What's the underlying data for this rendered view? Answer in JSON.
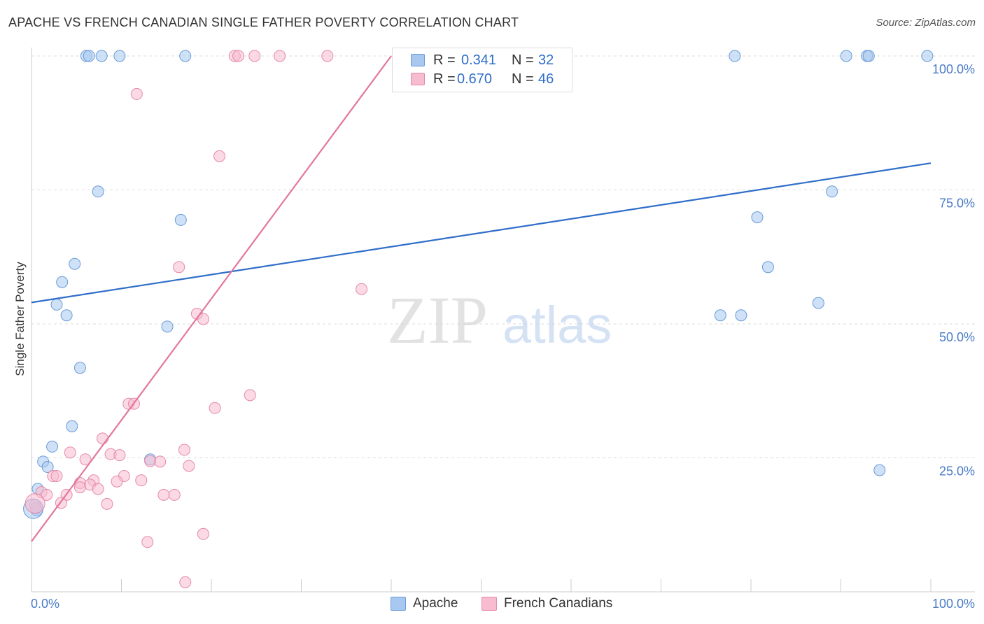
{
  "header": {
    "title": "APACHE VS FRENCH CANADIAN SINGLE FATHER POVERTY CORRELATION CHART",
    "source": "Source: ZipAtlas.com"
  },
  "watermark": {
    "zip": "ZIP",
    "atlas": "atlas"
  },
  "stats": [
    {
      "r_label": "R =",
      "r_value": "0.341",
      "n_label": "N =",
      "n_value": "32",
      "color": "#a8c8f0",
      "border": "#6a9bd8"
    },
    {
      "r_label": "R =",
      "r_value": "0.670",
      "n_label": "N =",
      "n_value": "46",
      "color": "#f7bcd0",
      "border": "#e58aa8"
    }
  ],
  "legend": [
    {
      "label": "Apache",
      "color": "#a8c8f0",
      "border": "#6a9bd8"
    },
    {
      "label": "French Canadians",
      "color": "#f7bcd0",
      "border": "#e58aa8"
    }
  ],
  "chart_data": {
    "type": "scatter",
    "title": "APACHE VS FRENCH CANADIAN SINGLE FATHER POVERTY CORRELATION CHART",
    "xlabel": "",
    "ylabel": "Single Father Poverty",
    "xlim": [
      0,
      100
    ],
    "ylim": [
      0,
      100
    ],
    "x_tick_labels": [
      "0.0%",
      "100.0%"
    ],
    "y_tick_labels": [
      "25.0%",
      "50.0%",
      "75.0%",
      "100.0%"
    ],
    "y_ticks": [
      25,
      50,
      75,
      100
    ],
    "grid": true,
    "series": [
      {
        "name": "Apache",
        "color": "#a8c8f0",
        "stroke": "#6a9bd8",
        "line_color": "#2f6ec9",
        "trend": {
          "x": [
            0,
            100
          ],
          "y": [
            54.0,
            80.0
          ]
        },
        "points": [
          {
            "x": 6.1,
            "y": 100
          },
          {
            "x": 6.4,
            "y": 100
          },
          {
            "x": 7.8,
            "y": 100
          },
          {
            "x": 9.8,
            "y": 100
          },
          {
            "x": 17.1,
            "y": 100
          },
          {
            "x": 78.2,
            "y": 100
          },
          {
            "x": 90.6,
            "y": 100
          },
          {
            "x": 92.9,
            "y": 100
          },
          {
            "x": 93.1,
            "y": 100
          },
          {
            "x": 99.6,
            "y": 100
          },
          {
            "x": 7.4,
            "y": 74.7
          },
          {
            "x": 16.6,
            "y": 69.4
          },
          {
            "x": 4.8,
            "y": 61.2
          },
          {
            "x": 3.4,
            "y": 57.8
          },
          {
            "x": 2.8,
            "y": 53.6
          },
          {
            "x": 3.9,
            "y": 51.6
          },
          {
            "x": 15.1,
            "y": 49.5
          },
          {
            "x": 5.4,
            "y": 41.8
          },
          {
            "x": 4.5,
            "y": 30.9
          },
          {
            "x": 2.3,
            "y": 27.1
          },
          {
            "x": 1.3,
            "y": 24.3
          },
          {
            "x": 1.8,
            "y": 23.3
          },
          {
            "x": 13.2,
            "y": 24.7
          },
          {
            "x": 0.7,
            "y": 19.2
          },
          {
            "x": 0.6,
            "y": 15.2
          },
          {
            "x": 89.0,
            "y": 74.7
          },
          {
            "x": 80.7,
            "y": 69.9
          },
          {
            "x": 81.9,
            "y": 60.6
          },
          {
            "x": 87.5,
            "y": 53.9
          },
          {
            "x": 76.6,
            "y": 51.6
          },
          {
            "x": 78.9,
            "y": 51.6
          },
          {
            "x": 94.3,
            "y": 22.7
          }
        ]
      },
      {
        "name": "French Canadians",
        "color": "#f7bcd0",
        "stroke": "#e58aa8",
        "line_color": "#e2779b",
        "trend": {
          "x": [
            0,
            40
          ],
          "y": [
            9.4,
            100
          ]
        },
        "points": [
          {
            "x": 22.6,
            "y": 100
          },
          {
            "x": 23.0,
            "y": 100
          },
          {
            "x": 24.8,
            "y": 100
          },
          {
            "x": 27.6,
            "y": 100
          },
          {
            "x": 32.9,
            "y": 100
          },
          {
            "x": 11.7,
            "y": 92.9
          },
          {
            "x": 20.9,
            "y": 81.3
          },
          {
            "x": 16.4,
            "y": 60.6
          },
          {
            "x": 36.7,
            "y": 56.5
          },
          {
            "x": 18.4,
            "y": 51.9
          },
          {
            "x": 19.1,
            "y": 50.9
          },
          {
            "x": 24.3,
            "y": 36.7
          },
          {
            "x": 10.8,
            "y": 35.1
          },
          {
            "x": 11.4,
            "y": 35.1
          },
          {
            "x": 20.4,
            "y": 34.3
          },
          {
            "x": 7.9,
            "y": 28.6
          },
          {
            "x": 4.3,
            "y": 26.0
          },
          {
            "x": 8.8,
            "y": 25.7
          },
          {
            "x": 9.8,
            "y": 25.5
          },
          {
            "x": 17.0,
            "y": 26.5
          },
          {
            "x": 6.0,
            "y": 24.7
          },
          {
            "x": 13.2,
            "y": 24.4
          },
          {
            "x": 14.3,
            "y": 24.3
          },
          {
            "x": 17.5,
            "y": 23.5
          },
          {
            "x": 2.4,
            "y": 21.6
          },
          {
            "x": 2.8,
            "y": 21.6
          },
          {
            "x": 10.3,
            "y": 21.6
          },
          {
            "x": 6.9,
            "y": 20.8
          },
          {
            "x": 12.2,
            "y": 20.8
          },
          {
            "x": 9.5,
            "y": 20.6
          },
          {
            "x": 5.4,
            "y": 20.3
          },
          {
            "x": 6.5,
            "y": 20.0
          },
          {
            "x": 5.4,
            "y": 19.5
          },
          {
            "x": 7.4,
            "y": 19.2
          },
          {
            "x": 1.1,
            "y": 18.6
          },
          {
            "x": 1.7,
            "y": 18.1
          },
          {
            "x": 3.9,
            "y": 18.1
          },
          {
            "x": 14.7,
            "y": 18.1
          },
          {
            "x": 15.9,
            "y": 18.1
          },
          {
            "x": 3.3,
            "y": 16.6
          },
          {
            "x": 8.4,
            "y": 16.4
          },
          {
            "x": 0.4,
            "y": 16.2
          },
          {
            "x": 0.5,
            "y": 15.6
          },
          {
            "x": 19.1,
            "y": 10.8
          },
          {
            "x": 12.9,
            "y": 9.3
          },
          {
            "x": 17.1,
            "y": 1.8
          }
        ]
      }
    ]
  }
}
